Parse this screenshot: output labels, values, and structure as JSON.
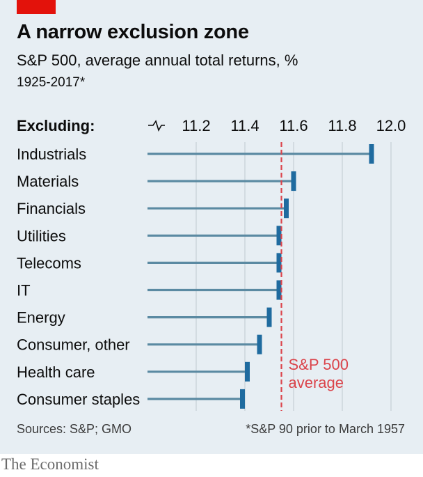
{
  "header": {
    "title": "A narrow exclusion zone",
    "subtitle": "S&P 500, average annual total returns, %",
    "period": "1925-2017*"
  },
  "footer": {
    "source": "Sources: S&P; GMO",
    "footnote": "*S&P 90 prior to March 1957",
    "brand": "The Economist"
  },
  "colors": {
    "background": "#e7eef3",
    "bar": "#5b8aa2",
    "marker": "#1f6b9f",
    "reference": "#db444b",
    "grid": "#c6cfd5",
    "brand_tag": "#e3120b"
  },
  "chart_data": {
    "type": "bar",
    "orientation": "horizontal",
    "row_header": "Excluding:",
    "axis_break": true,
    "xlim": [
      11.0,
      12.0
    ],
    "x_ticks": [
      "11.2",
      "11.4",
      "11.6",
      "11.8",
      "12.0"
    ],
    "categories": [
      "Industrials",
      "Materials",
      "Financials",
      "Utilities",
      "Telecoms",
      "IT",
      "Energy",
      "Consumer, other",
      "Health care",
      "Consumer staples"
    ],
    "values": [
      11.92,
      11.6,
      11.57,
      11.54,
      11.54,
      11.54,
      11.5,
      11.46,
      11.41,
      11.39
    ],
    "reference": {
      "value": 11.55,
      "label_lines": [
        "S&P 500",
        "average"
      ]
    },
    "grid": true
  }
}
